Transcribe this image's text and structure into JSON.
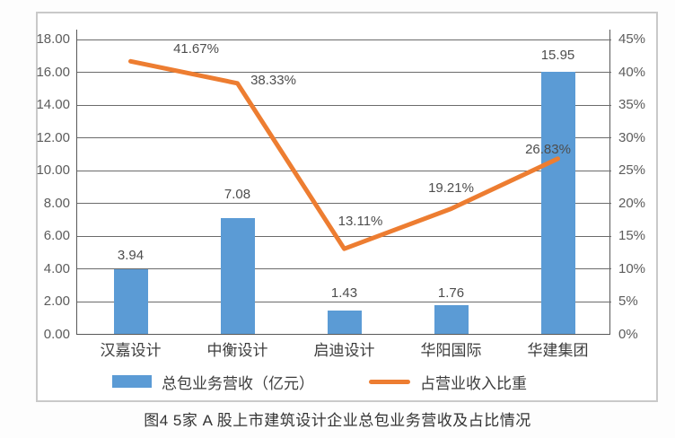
{
  "caption": "图4 5家 A 股上市建筑设计企业总包业务营收及占比情况",
  "chart_data": {
    "type": "bar",
    "subtype": "bar-line-combo",
    "title": "图4 5家 A 股上市建筑设计企业总包业务营收及占比情况",
    "categories": [
      "汉嘉设计",
      "中衡设计",
      "启迪设计",
      "华阳国际",
      "华建集团"
    ],
    "series": [
      {
        "name": "总包业务营收（亿元）",
        "type": "bar",
        "axis": "left",
        "color": "#5B9BD5",
        "values": [
          3.94,
          7.08,
          1.43,
          1.76,
          15.95
        ],
        "labels": [
          "3.94",
          "7.08",
          "1.43",
          "1.76",
          "15.95"
        ]
      },
      {
        "name": "占营业收入比重",
        "type": "line",
        "axis": "right",
        "color": "#ED7D31",
        "values": [
          41.67,
          38.33,
          13.11,
          19.21,
          26.83
        ],
        "labels": [
          "41.67%",
          "38.33%",
          "13.11%",
          "19.21%",
          "26.83%"
        ]
      }
    ],
    "left_axis": {
      "min": 0,
      "max": 18,
      "step": 2,
      "ticks": [
        "18.00",
        "16.00",
        "14.00",
        "12.00",
        "10.00",
        "8.00",
        "6.00",
        "4.00",
        "2.00",
        "0.00"
      ]
    },
    "right_axis": {
      "min": 0,
      "max": 45,
      "step": 5,
      "ticks": [
        "45%",
        "40%",
        "35%",
        "30%",
        "25%",
        "20%",
        "15%",
        "10%",
        "5%",
        "0%"
      ]
    },
    "grid": true,
    "legend_position": "bottom"
  },
  "legend": {
    "items": [
      {
        "label": "总包业务营收（亿元）",
        "marker": "bar",
        "color": "#5B9BD5"
      },
      {
        "label": "占营业收入比重",
        "marker": "line",
        "color": "#ED7D31"
      }
    ]
  },
  "colors": {
    "bar": "#5B9BD5",
    "line": "#ED7D31",
    "gridline": "#6b6b6b",
    "axis": "#595959",
    "figure_border": "#c9c9c9"
  }
}
